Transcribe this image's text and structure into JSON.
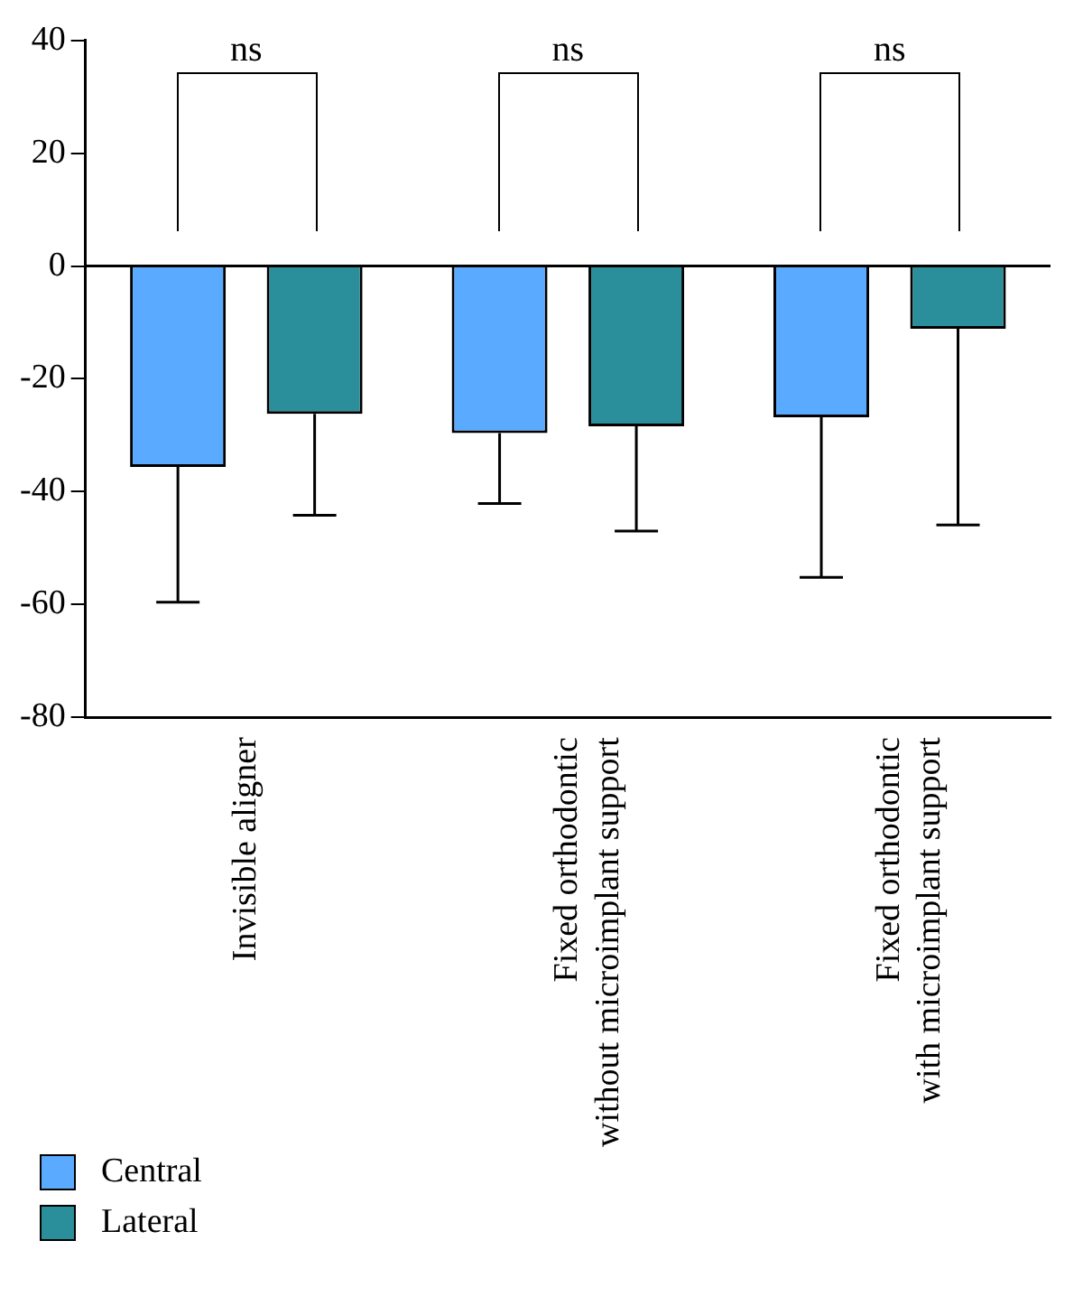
{
  "chart_data": {
    "type": "bar",
    "categories": [
      "Invisible aligner",
      "Fixed orthodontic\nwithout microimplant support",
      "Fixed orthodontic\nwith microimplant support"
    ],
    "series": [
      {
        "name": "Central",
        "color": "#5aabff",
        "values": [
          -35.6,
          -29.6,
          -26.8
        ],
        "errors": [
          [
            -59.6,
            -35.6
          ],
          [
            -42.1,
            -29.6
          ],
          [
            -55.2,
            -26.8
          ]
        ]
      },
      {
        "name": "Lateral",
        "color": "#2a8f9a",
        "values": [
          -26.2,
          -28.4,
          -11.1
        ],
        "errors": [
          [
            -44.2,
            -26.2
          ],
          [
            -47,
            -28.4
          ],
          [
            -45.9,
            -11.1
          ]
        ]
      }
    ],
    "ylim": [
      -80,
      40
    ],
    "yticks": [
      -80,
      -60,
      -40,
      -20,
      0,
      20,
      40
    ],
    "annotations": [
      "ns",
      "ns",
      "ns"
    ],
    "ref_lines": [
      {
        "axis": "y",
        "value": 0
      }
    ],
    "grid": false,
    "legend": "bottom left"
  }
}
